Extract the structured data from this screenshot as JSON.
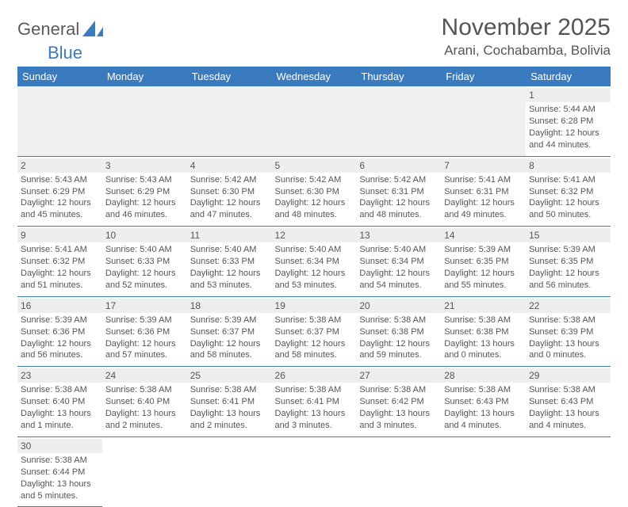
{
  "logo": {
    "text1": "General",
    "text2": "Blue"
  },
  "title": "November 2025",
  "location": "Arani, Cochabamba, Bolivia",
  "colors": {
    "header_bg": "#3a7bbf",
    "header_text": "#ffffff",
    "daynum_bg": "#eeeeee",
    "empty_bg": "#f0f0f0",
    "text": "#555555",
    "rule": "#3a7bbf"
  },
  "day_headers": [
    "Sunday",
    "Monday",
    "Tuesday",
    "Wednesday",
    "Thursday",
    "Friday",
    "Saturday"
  ],
  "leading_blanks": 6,
  "trailing_blanks": 6,
  "days": [
    {
      "n": 1,
      "sunrise": "5:44 AM",
      "sunset": "6:28 PM",
      "daylight": "12 hours and 44 minutes."
    },
    {
      "n": 2,
      "sunrise": "5:43 AM",
      "sunset": "6:29 PM",
      "daylight": "12 hours and 45 minutes."
    },
    {
      "n": 3,
      "sunrise": "5:43 AM",
      "sunset": "6:29 PM",
      "daylight": "12 hours and 46 minutes."
    },
    {
      "n": 4,
      "sunrise": "5:42 AM",
      "sunset": "6:30 PM",
      "daylight": "12 hours and 47 minutes."
    },
    {
      "n": 5,
      "sunrise": "5:42 AM",
      "sunset": "6:30 PM",
      "daylight": "12 hours and 48 minutes."
    },
    {
      "n": 6,
      "sunrise": "5:42 AM",
      "sunset": "6:31 PM",
      "daylight": "12 hours and 48 minutes."
    },
    {
      "n": 7,
      "sunrise": "5:41 AM",
      "sunset": "6:31 PM",
      "daylight": "12 hours and 49 minutes."
    },
    {
      "n": 8,
      "sunrise": "5:41 AM",
      "sunset": "6:32 PM",
      "daylight": "12 hours and 50 minutes."
    },
    {
      "n": 9,
      "sunrise": "5:41 AM",
      "sunset": "6:32 PM",
      "daylight": "12 hours and 51 minutes."
    },
    {
      "n": 10,
      "sunrise": "5:40 AM",
      "sunset": "6:33 PM",
      "daylight": "12 hours and 52 minutes."
    },
    {
      "n": 11,
      "sunrise": "5:40 AM",
      "sunset": "6:33 PM",
      "daylight": "12 hours and 53 minutes."
    },
    {
      "n": 12,
      "sunrise": "5:40 AM",
      "sunset": "6:34 PM",
      "daylight": "12 hours and 53 minutes."
    },
    {
      "n": 13,
      "sunrise": "5:40 AM",
      "sunset": "6:34 PM",
      "daylight": "12 hours and 54 minutes."
    },
    {
      "n": 14,
      "sunrise": "5:39 AM",
      "sunset": "6:35 PM",
      "daylight": "12 hours and 55 minutes."
    },
    {
      "n": 15,
      "sunrise": "5:39 AM",
      "sunset": "6:35 PM",
      "daylight": "12 hours and 56 minutes."
    },
    {
      "n": 16,
      "sunrise": "5:39 AM",
      "sunset": "6:36 PM",
      "daylight": "12 hours and 56 minutes."
    },
    {
      "n": 17,
      "sunrise": "5:39 AM",
      "sunset": "6:36 PM",
      "daylight": "12 hours and 57 minutes."
    },
    {
      "n": 18,
      "sunrise": "5:39 AM",
      "sunset": "6:37 PM",
      "daylight": "12 hours and 58 minutes."
    },
    {
      "n": 19,
      "sunrise": "5:38 AM",
      "sunset": "6:37 PM",
      "daylight": "12 hours and 58 minutes."
    },
    {
      "n": 20,
      "sunrise": "5:38 AM",
      "sunset": "6:38 PM",
      "daylight": "12 hours and 59 minutes."
    },
    {
      "n": 21,
      "sunrise": "5:38 AM",
      "sunset": "6:38 PM",
      "daylight": "13 hours and 0 minutes."
    },
    {
      "n": 22,
      "sunrise": "5:38 AM",
      "sunset": "6:39 PM",
      "daylight": "13 hours and 0 minutes."
    },
    {
      "n": 23,
      "sunrise": "5:38 AM",
      "sunset": "6:40 PM",
      "daylight": "13 hours and 1 minute."
    },
    {
      "n": 24,
      "sunrise": "5:38 AM",
      "sunset": "6:40 PM",
      "daylight": "13 hours and 2 minutes."
    },
    {
      "n": 25,
      "sunrise": "5:38 AM",
      "sunset": "6:41 PM",
      "daylight": "13 hours and 2 minutes."
    },
    {
      "n": 26,
      "sunrise": "5:38 AM",
      "sunset": "6:41 PM",
      "daylight": "13 hours and 3 minutes."
    },
    {
      "n": 27,
      "sunrise": "5:38 AM",
      "sunset": "6:42 PM",
      "daylight": "13 hours and 3 minutes."
    },
    {
      "n": 28,
      "sunrise": "5:38 AM",
      "sunset": "6:43 PM",
      "daylight": "13 hours and 4 minutes."
    },
    {
      "n": 29,
      "sunrise": "5:38 AM",
      "sunset": "6:43 PM",
      "daylight": "13 hours and 4 minutes."
    },
    {
      "n": 30,
      "sunrise": "5:38 AM",
      "sunset": "6:44 PM",
      "daylight": "13 hours and 5 minutes."
    }
  ],
  "labels": {
    "sunrise": "Sunrise: ",
    "sunset": "Sunset: ",
    "daylight": "Daylight: "
  }
}
